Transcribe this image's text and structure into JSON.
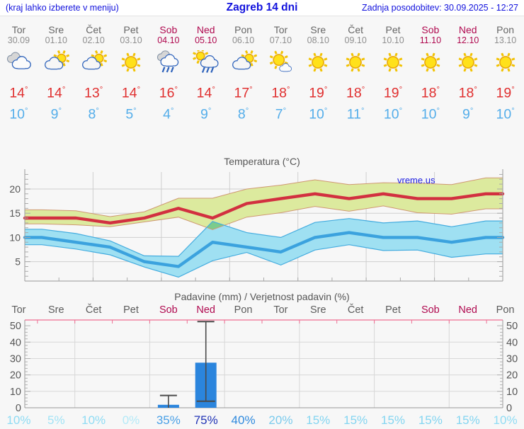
{
  "header": {
    "hint": "(kraj lahko izberete v meniju)",
    "title": "Zagreb 14 dni",
    "updated": "Zadnja posodobitev: 30.09.2025 - 12:27"
  },
  "deg_symbol": "°",
  "colors": {
    "header_blue": "#1212dd",
    "weekend": "#b00a50",
    "weekday_name": "#666666",
    "weekday_date": "#8f8f8f",
    "precip_day_label": "#5c5c5c",
    "tmax_text": "#e03030",
    "tmin_text": "#55aeea",
    "chart_label": "#555555",
    "grid": "#cfcfcf",
    "axis": "#9a9a9a",
    "temp_line_max": "#d23040",
    "temp_band_max": "#dcea9e",
    "temp_band_max_edge": "#cf9872",
    "temp_line_min": "#3ba2de",
    "temp_band_min": "#9fe0f2",
    "temp_band_min_edge": "#44acdf",
    "band_overlap": "#7bcc8c",
    "bar_blue": "#2b85dd",
    "whisker": "#4a4a4a",
    "pink_frame": "#ef6e93",
    "watermark_blue": "#2020e0"
  },
  "days": [
    {
      "name": "Tor",
      "date": "30.09",
      "weekend": false,
      "icon": "cloudy",
      "tmax": "14",
      "tmin": "10"
    },
    {
      "name": "Sre",
      "date": "01.10",
      "weekend": false,
      "icon": "sun-cloud",
      "tmax": "14",
      "tmin": "9"
    },
    {
      "name": "Čet",
      "date": "02.10",
      "weekend": false,
      "icon": "sun-cloud",
      "tmax": "13",
      "tmin": "8"
    },
    {
      "name": "Pet",
      "date": "03.10",
      "weekend": false,
      "icon": "sunny",
      "tmax": "14",
      "tmin": "5"
    },
    {
      "name": "Sob",
      "date": "04.10",
      "weekend": true,
      "icon": "rain",
      "tmax": "16",
      "tmin": "4"
    },
    {
      "name": "Ned",
      "date": "05.10",
      "weekend": true,
      "icon": "sun-rain",
      "tmax": "14",
      "tmin": "9"
    },
    {
      "name": "Pon",
      "date": "06.10",
      "weekend": false,
      "icon": "sun-cloud",
      "tmax": "17",
      "tmin": "8"
    },
    {
      "name": "Tor",
      "date": "07.10",
      "weekend": false,
      "icon": "mostly-sunny",
      "tmax": "18",
      "tmin": "7"
    },
    {
      "name": "Sre",
      "date": "08.10",
      "weekend": false,
      "icon": "sunny",
      "tmax": "19",
      "tmin": "10"
    },
    {
      "name": "Čet",
      "date": "09.10",
      "weekend": false,
      "icon": "sunny",
      "tmax": "18",
      "tmin": "11"
    },
    {
      "name": "Pet",
      "date": "10.10",
      "weekend": false,
      "icon": "sunny",
      "tmax": "19",
      "tmin": "10"
    },
    {
      "name": "Sob",
      "date": "11.10",
      "weekend": true,
      "icon": "sunny",
      "tmax": "18",
      "tmin": "10"
    },
    {
      "name": "Ned",
      "date": "12.10",
      "weekend": true,
      "icon": "sunny",
      "tmax": "18",
      "tmin": "9"
    },
    {
      "name": "Pon",
      "date": "13.10",
      "weekend": false,
      "icon": "sunny",
      "tmax": "19",
      "tmin": "10"
    }
  ],
  "chart_data": [
    {
      "type": "line",
      "title": "Temperatura (°C)",
      "watermark": "vreme.us",
      "x_labels": [
        "Tor",
        "Sre",
        "Čet",
        "Pet",
        "Sob",
        "Ned",
        "Pon",
        "Tor",
        "Sre",
        "Čet",
        "Pet",
        "Sob",
        "Ned",
        "Pon"
      ],
      "ylim": [
        1,
        23.5
      ],
      "yticks": [
        5,
        10,
        15,
        20
      ],
      "grid": true,
      "legend_position": "none",
      "series": [
        {
          "name": "max temperature",
          "values": [
            14,
            14,
            13,
            14,
            16,
            14,
            17,
            18,
            19,
            18,
            19,
            18,
            18,
            19
          ],
          "upper": [
            15.7,
            15.5,
            14.3,
            15.3,
            18.1,
            18.1,
            20.0,
            20.8,
            21.9,
            20.9,
            21.3,
            21.2,
            20.9,
            22.3
          ],
          "lower": [
            12.8,
            12.6,
            12.2,
            13.2,
            14.2,
            11.6,
            14.2,
            15.1,
            16.4,
            15.4,
            16.5,
            15.1,
            14.8,
            15.9
          ]
        },
        {
          "name": "min temperature",
          "values": [
            10,
            9,
            8,
            5,
            4,
            9,
            8,
            7,
            10,
            11,
            10,
            10,
            9,
            10
          ],
          "upper": [
            11.7,
            10.8,
            9.3,
            6.2,
            6.1,
            13.3,
            11.0,
            10.0,
            13.1,
            13.9,
            13.0,
            13.4,
            12.2,
            13.4
          ],
          "lower": [
            8.5,
            7.6,
            6.4,
            3.9,
            1.8,
            5.2,
            6.9,
            4.3,
            7.4,
            8.5,
            7.3,
            7.4,
            5.9,
            6.6
          ]
        }
      ]
    },
    {
      "type": "bar",
      "title": "Padavine (mm) / Verjetnost padavin (%)",
      "categories": [
        "Tor",
        "Sre",
        "Čet",
        "Pet",
        "Sob",
        "Ned",
        "Pon",
        "Tor",
        "Sre",
        "Čet",
        "Pet",
        "Sob",
        "Ned",
        "Pon"
      ],
      "weekend_flags": [
        false,
        false,
        false,
        false,
        true,
        true,
        false,
        false,
        false,
        false,
        false,
        true,
        true,
        false
      ],
      "values": [
        0,
        0,
        0,
        0,
        1.8,
        27.5,
        0,
        0,
        0,
        0,
        0,
        0,
        0,
        0
      ],
      "whiskers": [
        {
          "index": 4,
          "high": 7.5
        },
        {
          "index": 5,
          "low": 4,
          "high": 52.5
        }
      ],
      "probabilities": [
        "10%",
        "5%",
        "10%",
        "0%",
        "35%",
        "75%",
        "40%",
        "20%",
        "15%",
        "15%",
        "15%",
        "15%",
        "15%",
        "10%"
      ],
      "prob_colors": [
        "#8fdcf4",
        "#a2e3f6",
        "#8fdcf4",
        "#b4eaf8",
        "#4aa0e6",
        "#2134b6",
        "#2f8ade",
        "#7bcbed",
        "#83d5f1",
        "#83d5f1",
        "#83d5f1",
        "#83d5f1",
        "#83d5f1",
        "#8fdcf4"
      ],
      "ylim": [
        0,
        53.5
      ],
      "yticks": [
        0,
        10,
        20,
        30,
        40,
        50
      ]
    }
  ]
}
